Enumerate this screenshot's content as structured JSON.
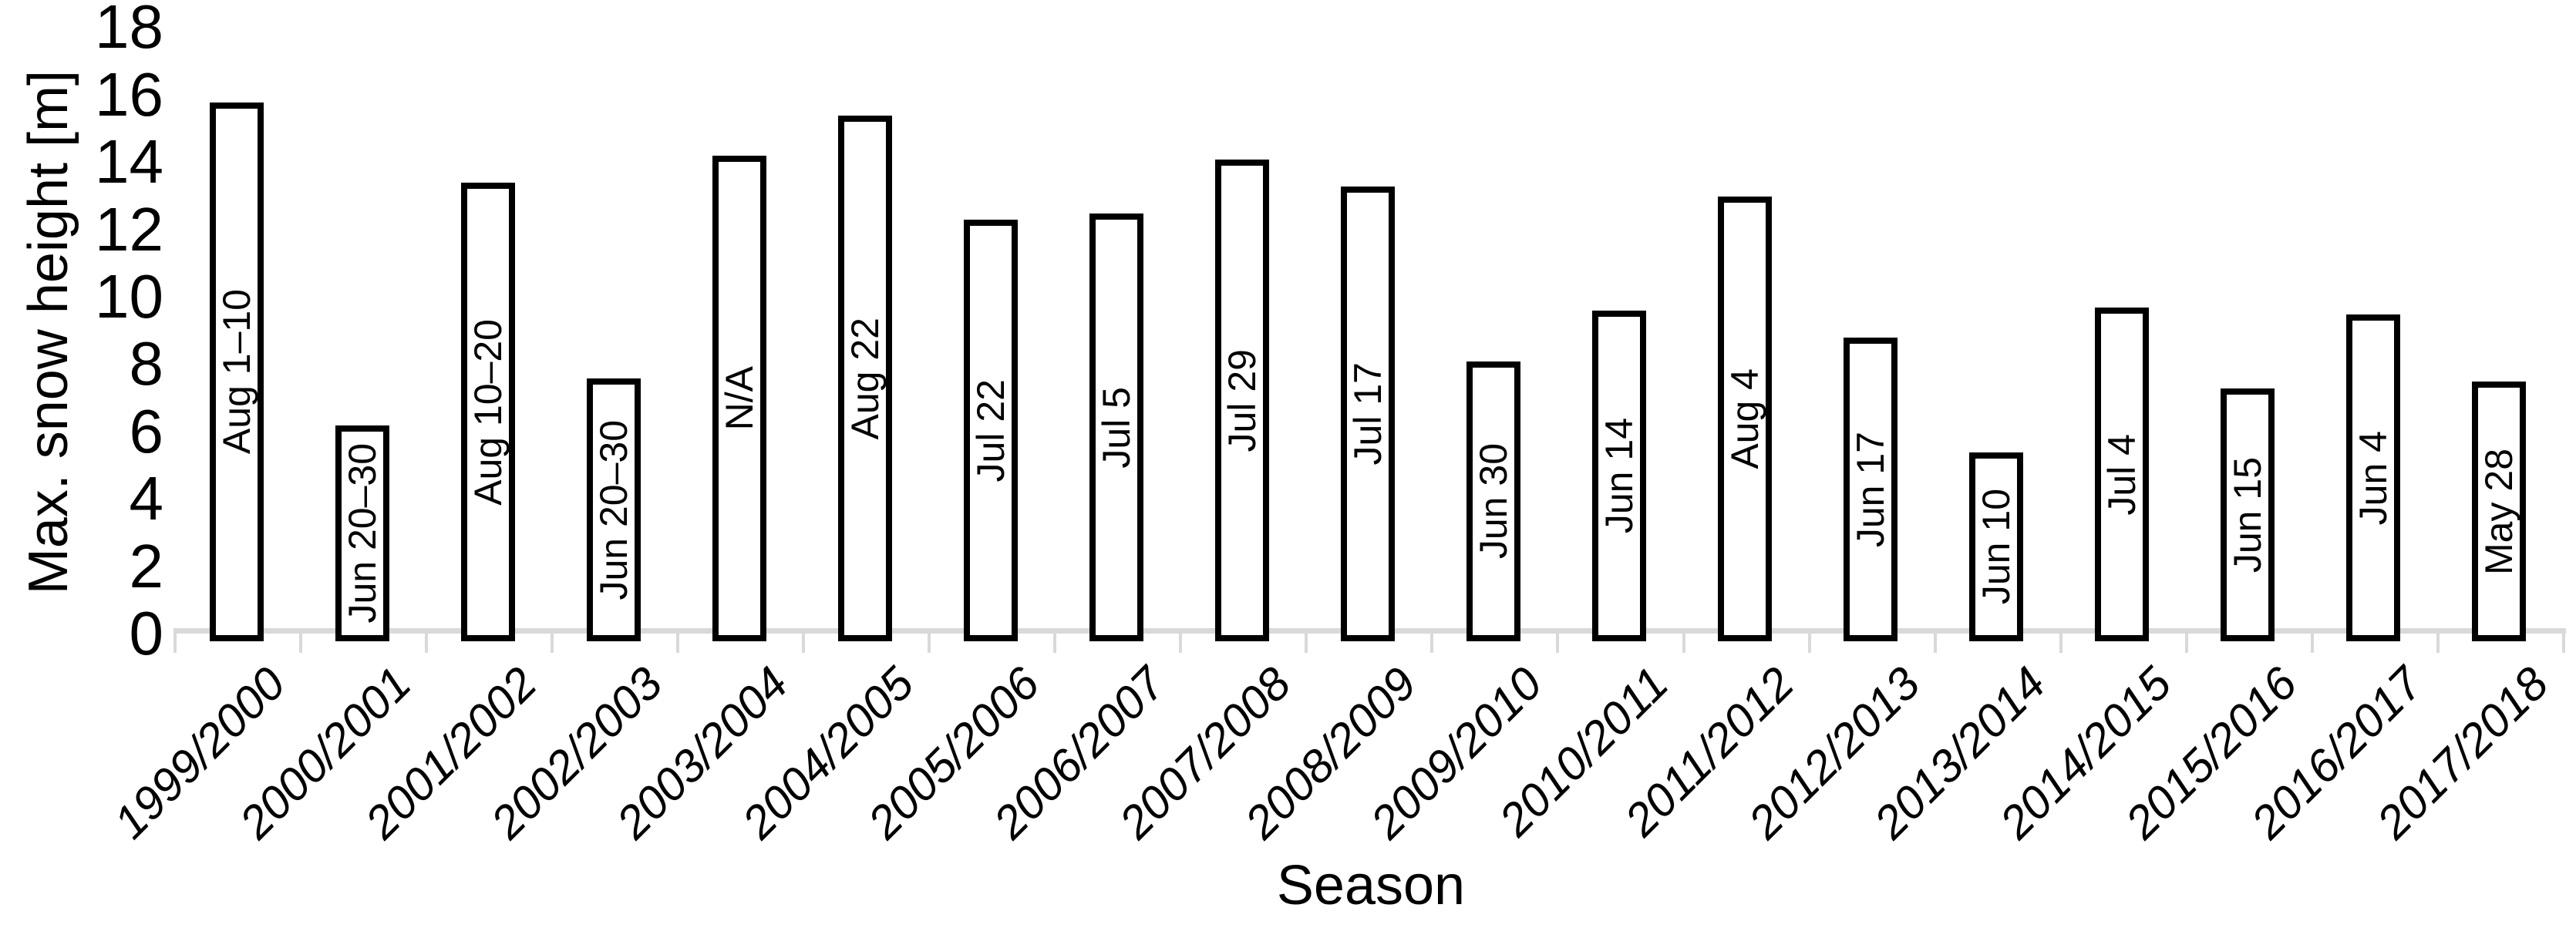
{
  "chart_data": {
    "type": "bar",
    "title": "",
    "xlabel": "Season",
    "ylabel": "Max. snow height [m]",
    "ylim": [
      0,
      18
    ],
    "yticks": [
      0,
      2,
      4,
      6,
      8,
      10,
      12,
      14,
      16,
      18
    ],
    "grid": false,
    "legend": "none",
    "bar_fill_color": "#ffffff",
    "bar_border_color": "#000000",
    "axis_line_color": "#d9d9d9",
    "text_color": "#000000",
    "categories": [
      "1999/2000",
      "2000/2001",
      "2001/2002",
      "2002/2003",
      "2003/2004",
      "2004/2005",
      "2005/2006",
      "2006/2007",
      "2007/2008",
      "2008/2009",
      "2009/2010",
      "2010/2011",
      "2011/2012",
      "2012/2013",
      "2013/2014",
      "2014/2015",
      "2015/2016",
      "2016/2017",
      "2017/2018"
    ],
    "values": [
      15.8,
      6.2,
      13.4,
      7.6,
      14.2,
      15.4,
      12.3,
      12.5,
      14.1,
      13.3,
      8.1,
      9.6,
      13.0,
      8.8,
      5.4,
      9.7,
      7.3,
      9.5,
      7.5
    ],
    "bar_labels": [
      "Aug 1–10",
      "Jun 20–30",
      "Aug 10–20",
      "Jun 20–30",
      "N/A",
      "Aug 22",
      "Jul 22",
      "Jul 5",
      "Jul 29",
      "Jul 17",
      "Jun 30",
      "Jun 14",
      "Aug 4",
      "Jun 17",
      "Jun 10",
      "Jul 4",
      "Jun 15",
      "Jun 4",
      "May 28"
    ]
  }
}
